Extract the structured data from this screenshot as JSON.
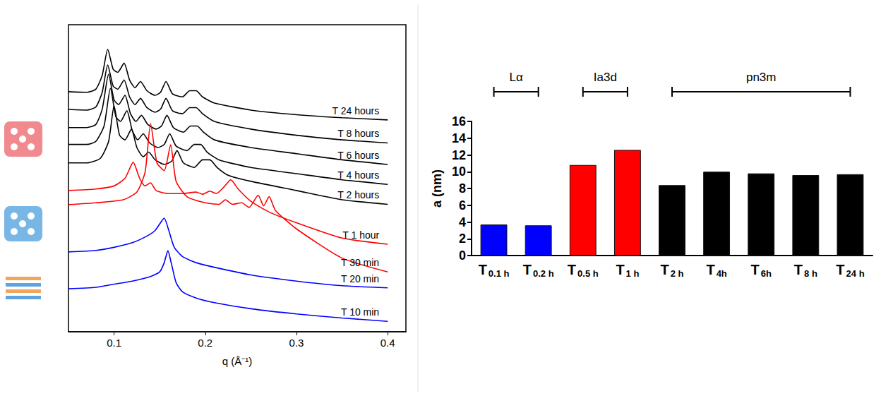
{
  "chart_data": [
    {
      "type": "line",
      "xlabel": "q (Å⁻¹)",
      "xlim": [
        0.05,
        0.42
      ],
      "xticks": [
        0.1,
        0.2,
        0.3,
        0.4
      ],
      "ylim": [
        0,
        100
      ],
      "yticks": [],
      "tick_labels": "x",
      "grid": false,
      "series": [
        {
          "name": "T 24 hours",
          "color": "#000000",
          "x": [
            0.05,
            0.07,
            0.08,
            0.087,
            0.093,
            0.099,
            0.104,
            0.111,
            0.117,
            0.123,
            0.129,
            0.136,
            0.145,
            0.151,
            0.157,
            0.164,
            0.175,
            0.183,
            0.19,
            0.197,
            0.21,
            0.25,
            0.3,
            0.35,
            0.4
          ],
          "values": [
            78.2,
            78.0,
            79.0,
            83.5,
            92.0,
            85.5,
            84.5,
            87.5,
            82.0,
            79.5,
            81.5,
            78.5,
            77.0,
            78.0,
            81.5,
            77.5,
            76.5,
            78.5,
            78.5,
            76.5,
            74.5,
            72.2,
            70.7,
            69.7,
            69.0
          ]
        },
        {
          "name": "T 8 hours",
          "color": "#000000",
          "x": [
            0.05,
            0.07,
            0.08,
            0.087,
            0.093,
            0.099,
            0.104,
            0.111,
            0.117,
            0.123,
            0.129,
            0.136,
            0.145,
            0.151,
            0.157,
            0.164,
            0.175,
            0.183,
            0.19,
            0.197,
            0.21,
            0.25,
            0.3,
            0.35,
            0.4
          ],
          "values": [
            72.4,
            72.2,
            73.2,
            78.0,
            86.9,
            80.0,
            79.0,
            82.0,
            76.5,
            74.0,
            76.0,
            73.0,
            71.5,
            72.5,
            76.0,
            72.0,
            71.0,
            73.0,
            73.0,
            71.0,
            68.5,
            66.0,
            64.0,
            62.5,
            61.5
          ]
        },
        {
          "name": "T 6 hours",
          "color": "#000000",
          "x": [
            0.05,
            0.07,
            0.08,
            0.087,
            0.094,
            0.1,
            0.105,
            0.112,
            0.118,
            0.124,
            0.13,
            0.137,
            0.146,
            0.152,
            0.158,
            0.165,
            0.176,
            0.184,
            0.191,
            0.198,
            0.21,
            0.25,
            0.3,
            0.35,
            0.4
          ],
          "values": [
            66.5,
            66.5,
            67.5,
            72.5,
            83.9,
            75.5,
            74.0,
            77.0,
            71.0,
            68.5,
            70.5,
            67.5,
            66.0,
            67.0,
            70.5,
            66.5,
            65.0,
            67.0,
            67.0,
            65.0,
            62.5,
            60.0,
            58.0,
            56.0,
            54.5
          ]
        },
        {
          "name": "T 4 hours",
          "color": "#000000",
          "x": [
            0.05,
            0.07,
            0.08,
            0.089,
            0.096,
            0.102,
            0.107,
            0.114,
            0.12,
            0.126,
            0.132,
            0.139,
            0.148,
            0.155,
            0.161,
            0.168,
            0.18,
            0.188,
            0.195,
            0.202,
            0.215,
            0.25,
            0.3,
            0.35,
            0.4
          ],
          "values": [
            61.0,
            61.0,
            62.0,
            67.0,
            79.3,
            70.0,
            68.5,
            72.0,
            65.5,
            62.5,
            64.5,
            61.5,
            60.0,
            61.0,
            64.5,
            60.5,
            59.0,
            61.0,
            61.0,
            58.5,
            56.0,
            53.5,
            51.5,
            49.5,
            48.0
          ]
        },
        {
          "name": "T 2 hours",
          "color": "#000000",
          "x": [
            0.05,
            0.07,
            0.085,
            0.094,
            0.1,
            0.106,
            0.112,
            0.119,
            0.125,
            0.132,
            0.138,
            0.145,
            0.155,
            0.163,
            0.169,
            0.176,
            0.188,
            0.197,
            0.205,
            0.213,
            0.225,
            0.25,
            0.3,
            0.35,
            0.4
          ],
          "values": [
            55.0,
            55.0,
            56.5,
            62.0,
            73.6,
            64.0,
            62.5,
            66.0,
            60.0,
            57.0,
            58.5,
            56.0,
            54.5,
            55.5,
            59.0,
            55.0,
            53.5,
            56.0,
            56.0,
            53.5,
            51.0,
            49.0,
            46.0,
            43.0,
            41.5
          ]
        },
        {
          "name": "T 1 hour",
          "color": "#ff0000",
          "x": [
            0.05,
            0.08,
            0.1,
            0.112,
            0.121,
            0.128,
            0.134,
            0.14,
            0.146,
            0.16,
            0.175,
            0.19,
            0.197,
            0.205,
            0.212,
            0.22,
            0.228,
            0.236,
            0.25,
            0.27,
            0.3,
            0.35,
            0.4
          ],
          "values": [
            46.0,
            46.5,
            47.5,
            50.0,
            55.2,
            50.0,
            47.5,
            48.5,
            46.0,
            45.0,
            45.0,
            45.5,
            44.8,
            45.8,
            45.0,
            47.0,
            49.5,
            46.5,
            42.5,
            39.0,
            35.5,
            30.5,
            28.5
          ]
        },
        {
          "name": "T 30 min",
          "color": "#ff0000",
          "x": [
            0.05,
            0.08,
            0.11,
            0.125,
            0.134,
            0.14,
            0.147,
            0.155,
            0.162,
            0.168,
            0.18,
            0.2,
            0.215,
            0.222,
            0.23,
            0.24,
            0.248,
            0.258,
            0.264,
            0.27,
            0.277,
            0.3,
            0.35,
            0.4
          ],
          "values": [
            41.4,
            42.0,
            43.0,
            45.5,
            52.0,
            67.8,
            55.0,
            52.5,
            60.9,
            49.0,
            44.0,
            42.0,
            41.5,
            43.0,
            41.5,
            42.0,
            40.5,
            44.5,
            41.0,
            44.0,
            39.5,
            33.5,
            24.0,
            19.5
          ]
        },
        {
          "name": "T 20 min",
          "color": "#0000ff",
          "x": [
            0.05,
            0.08,
            0.1,
            0.12,
            0.135,
            0.145,
            0.152,
            0.155,
            0.16,
            0.166,
            0.175,
            0.19,
            0.21,
            0.25,
            0.3,
            0.35,
            0.4
          ],
          "values": [
            26.0,
            26.5,
            27.5,
            29.0,
            31.0,
            33.0,
            36.0,
            37.0,
            33.0,
            27.5,
            24.5,
            22.5,
            21.0,
            18.5,
            16.5,
            15.0,
            14.3
          ]
        },
        {
          "name": "T 10 min",
          "color": "#0000ff",
          "x": [
            0.05,
            0.08,
            0.1,
            0.12,
            0.14,
            0.15,
            0.155,
            0.159,
            0.163,
            0.168,
            0.175,
            0.19,
            0.21,
            0.25,
            0.3,
            0.35,
            0.4
          ],
          "values": [
            14.0,
            14.5,
            15.5,
            16.5,
            18.0,
            19.5,
            22.5,
            26.4,
            22.0,
            16.0,
            13.0,
            11.0,
            9.5,
            7.5,
            5.8,
            4.5,
            3.4
          ]
        }
      ]
    },
    {
      "type": "bar",
      "ylabel": "a (nm)",
      "categories": [
        "T 0.1 h",
        "T 0.2 h",
        "T 0.5 h",
        "T 1 h",
        "T 2 h",
        "T 4h",
        "T 6h",
        "T 8 h",
        "T 24 h"
      ],
      "values": [
        3.7,
        3.6,
        10.8,
        12.6,
        8.4,
        10.0,
        9.8,
        9.6,
        9.7
      ],
      "colors": [
        "#0000ff",
        "#0000ff",
        "#ff0000",
        "#ff0000",
        "#000000",
        "#000000",
        "#000000",
        "#000000",
        "#000000"
      ],
      "ylim": [
        0,
        16
      ],
      "yticks": [
        0,
        2,
        4,
        6,
        8,
        10,
        12,
        14,
        16
      ],
      "grid": false,
      "phases": [
        {
          "label": "Lα",
          "from": "T 0.1 h",
          "to": "T 0.2 h"
        },
        {
          "label": "Ia3d",
          "from": "T 0.5 h",
          "to": "T 1 h"
        },
        {
          "label": "pn3m",
          "from": "T 2 h",
          "to": "T 24 h"
        }
      ]
    }
  ]
}
